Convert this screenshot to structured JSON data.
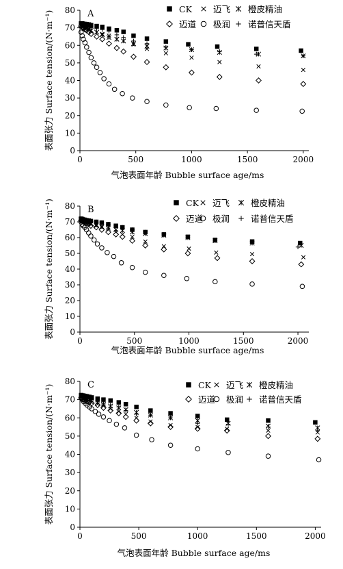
{
  "chart_data": [
    {
      "type": "scatter",
      "panel_label": "A",
      "xlabel": "气泡表面年龄 Bubble surface age/ms",
      "ylabel": "表面张力 Surface tension/(N·m⁻¹)",
      "xlim": [
        0,
        2050
      ],
      "ylim": [
        0,
        80
      ],
      "xticks": [
        "0",
        "500",
        "1000",
        "1500",
        "2000"
      ],
      "yticks": [
        "0",
        "10",
        "20",
        "30",
        "40",
        "50",
        "60",
        "70",
        "80"
      ],
      "legend_position": "top-right",
      "grid": false,
      "series": [
        {
          "name": "CK",
          "marker": "filled-square",
          "x": [
            10,
            20,
            30,
            45,
            60,
            80,
            100,
            150,
            200,
            260,
            330,
            390,
            480,
            600,
            770,
            970,
            1230,
            1580,
            1980
          ],
          "y": [
            72.5,
            72.5,
            72.3,
            72.2,
            72.1,
            71.9,
            71.5,
            71.0,
            70.5,
            69.5,
            68.6,
            67.7,
            65.5,
            63.8,
            62.2,
            60.6,
            59.3,
            58.0,
            57.0
          ]
        },
        {
          "name": "迈飞",
          "marker": "x",
          "x": [
            10,
            20,
            30,
            45,
            60,
            80,
            100,
            150,
            200,
            260,
            330,
            390,
            480,
            600,
            770,
            1000,
            1250,
            1600,
            2000
          ],
          "y": [
            71.5,
            71.0,
            70.5,
            70.0,
            69.5,
            69.0,
            68.5,
            67.5,
            66.5,
            65.5,
            63.5,
            62.5,
            60.5,
            58.0,
            55.5,
            53.0,
            50.5,
            48.0,
            46.0
          ]
        },
        {
          "name": "橙皮精油",
          "marker": "asterisk",
          "x": [
            10,
            20,
            30,
            45,
            60,
            80,
            100,
            150,
            200,
            260,
            330,
            390,
            480,
            600,
            770,
            1000,
            1250,
            1600,
            2000
          ],
          "y": [
            71.5,
            71.3,
            71.0,
            70.5,
            70.0,
            69.5,
            68.5,
            67.5,
            66.0,
            64.5,
            63.5,
            62.5,
            61.0,
            59.5,
            58.5,
            57.5,
            56.0,
            55.0,
            54.0
          ]
        },
        {
          "name": "迈道",
          "marker": "open-diamond",
          "x": [
            10,
            20,
            30,
            45,
            60,
            80,
            100,
            150,
            200,
            260,
            330,
            390,
            480,
            600,
            770,
            1000,
            1250,
            1600,
            2000
          ],
          "y": [
            71.0,
            70.5,
            70.0,
            69.0,
            68.5,
            67.5,
            66.5,
            65.0,
            63.5,
            61.0,
            58.5,
            56.5,
            53.5,
            50.5,
            47.5,
            44.5,
            42.0,
            40.0,
            38.0
          ]
        },
        {
          "name": "极润",
          "marker": "open-circle",
          "x": [
            10,
            20,
            30,
            45,
            60,
            80,
            100,
            125,
            150,
            180,
            215,
            260,
            310,
            380,
            470,
            600,
            770,
            980,
            1220,
            1580,
            1990
          ],
          "y": [
            67.5,
            65.5,
            63.5,
            61.5,
            59.0,
            56.0,
            53.0,
            50.0,
            47.5,
            44.5,
            41.0,
            38.0,
            35.0,
            32.5,
            30.0,
            28.0,
            26.0,
            24.5,
            24.0,
            23.0,
            22.5
          ]
        },
        {
          "name": "诺普信天盾",
          "marker": "plus",
          "x": [
            10,
            20,
            30,
            45,
            60,
            80,
            100,
            150,
            200,
            260,
            330,
            390,
            480,
            600,
            770,
            1000,
            1250,
            1580,
            2000
          ],
          "y": [
            72.0,
            71.8,
            71.5,
            71.3,
            71.0,
            70.5,
            70.0,
            69.5,
            69.0,
            68.0,
            66.0,
            64.5,
            62.5,
            61.0,
            59.0,
            57.5,
            56.5,
            55.0,
            54.0
          ]
        }
      ]
    },
    {
      "type": "scatter",
      "panel_label": "B",
      "xlabel": "气泡表面年龄 Bubble surface age/ms",
      "ylabel": "表面张力 Surface tension/(N·m⁻¹)",
      "xlim": [
        0,
        2100
      ],
      "ylim": [
        0,
        80
      ],
      "xticks": [
        "0",
        "500",
        "1000",
        "1500",
        "2000"
      ],
      "yticks": [
        "0",
        "10",
        "20",
        "30",
        "40",
        "50",
        "60",
        "70",
        "80"
      ],
      "legend_position": "top-right",
      "grid": false,
      "series": [
        {
          "name": "CK",
          "marker": "filled-square",
          "x": [
            10,
            20,
            30,
            45,
            60,
            80,
            100,
            150,
            200,
            260,
            330,
            390,
            480,
            600,
            770,
            990,
            1240,
            1580,
            2020
          ],
          "y": [
            72.0,
            71.8,
            71.5,
            71.3,
            71.0,
            70.8,
            70.5,
            70.0,
            69.5,
            68.5,
            67.5,
            66.5,
            65.0,
            63.5,
            62.0,
            60.5,
            58.5,
            57.5,
            56.5
          ]
        },
        {
          "name": "迈飞",
          "marker": "x",
          "x": [
            10,
            20,
            30,
            45,
            60,
            80,
            100,
            150,
            200,
            260,
            330,
            390,
            480,
            600,
            770,
            1000,
            1250,
            1580,
            2050
          ],
          "y": [
            71.5,
            71.0,
            70.5,
            70.0,
            69.5,
            69.0,
            68.5,
            67.5,
            66.5,
            65.0,
            63.5,
            62.0,
            60.5,
            57.5,
            54.5,
            53.0,
            50.5,
            49.5,
            47.5
          ]
        },
        {
          "name": "橙皮精油",
          "marker": "asterisk",
          "x": [
            10,
            20,
            30,
            45,
            60,
            80,
            100,
            150,
            200,
            260,
            330,
            390,
            480,
            600,
            770,
            990,
            1240,
            1580,
            2030
          ],
          "y": [
            71.5,
            71.3,
            71.0,
            70.5,
            70.0,
            69.5,
            69.0,
            68.0,
            67.0,
            66.0,
            65.0,
            64.5,
            63.5,
            62.5,
            61.5,
            60.0,
            58.0,
            56.5,
            55.0
          ]
        },
        {
          "name": "迈道",
          "marker": "open-diamond",
          "x": [
            10,
            20,
            30,
            45,
            60,
            80,
            100,
            150,
            200,
            260,
            330,
            390,
            480,
            600,
            770,
            990,
            1260,
            1580,
            2030
          ],
          "y": [
            71.0,
            70.5,
            70.0,
            69.5,
            69.0,
            68.5,
            67.5,
            66.5,
            65.0,
            63.5,
            62.0,
            60.5,
            58.0,
            55.0,
            52.5,
            50.0,
            47.0,
            45.0,
            43.0
          ]
        },
        {
          "name": "极润",
          "marker": "open-circle",
          "x": [
            10,
            20,
            30,
            45,
            60,
            80,
            100,
            130,
            160,
            200,
            250,
            310,
            380,
            480,
            600,
            770,
            980,
            1240,
            1580,
            2040
          ],
          "y": [
            70.0,
            68.5,
            67.5,
            66.5,
            65.0,
            63.0,
            61.0,
            58.5,
            56.0,
            53.5,
            50.5,
            48.0,
            44.0,
            41.0,
            38.0,
            36.0,
            34.0,
            32.0,
            30.5,
            29.0
          ]
        },
        {
          "name": "诺普信天盾",
          "marker": "plus",
          "x": [
            10,
            20,
            30,
            45,
            60,
            80,
            100,
            150,
            200,
            260,
            330,
            390,
            480,
            600,
            770,
            990,
            1240,
            1580,
            2000
          ],
          "y": [
            72.0,
            71.8,
            71.5,
            71.3,
            71.0,
            70.8,
            70.5,
            70.0,
            69.5,
            68.5,
            67.5,
            66.5,
            65.0,
            63.5,
            62.0,
            60.0,
            58.0,
            56.5,
            54.0
          ]
        }
      ]
    },
    {
      "type": "scatter",
      "panel_label": "C",
      "xlabel": "气泡表面年龄 Bubble surface age/ms",
      "ylabel": "表面张力 Surface tension/(N·m⁻¹)",
      "xlim": [
        0,
        2050
      ],
      "ylim": [
        0,
        80
      ],
      "xticks": [
        "0",
        "500",
        "1000",
        "1500",
        "2000"
      ],
      "yticks": [
        "0",
        "10",
        "20",
        "30",
        "40",
        "50",
        "60",
        "70",
        "80"
      ],
      "legend_position": "top-right",
      "grid": false,
      "series": [
        {
          "name": "CK",
          "marker": "filled-square",
          "x": [
            10,
            20,
            30,
            45,
            60,
            80,
            100,
            150,
            200,
            260,
            330,
            390,
            480,
            600,
            770,
            1000,
            1250,
            1600,
            2000
          ],
          "y": [
            72.5,
            72.3,
            72.2,
            72.0,
            71.8,
            71.5,
            71.2,
            70.5,
            70.0,
            69.5,
            68.5,
            67.5,
            66.0,
            64.0,
            62.5,
            61.0,
            59.0,
            58.5,
            57.5
          ]
        },
        {
          "name": "迈飞",
          "marker": "x",
          "x": [
            10,
            20,
            30,
            45,
            60,
            80,
            100,
            150,
            200,
            260,
            330,
            390,
            480,
            600,
            770,
            1000,
            1250,
            1600,
            2020
          ],
          "y": [
            71.5,
            71.0,
            70.5,
            70.0,
            69.5,
            69.0,
            68.5,
            67.5,
            66.5,
            65.0,
            63.5,
            62.0,
            60.0,
            58.0,
            56.0,
            55.0,
            54.0,
            53.0,
            52.0
          ]
        },
        {
          "name": "橙皮精油",
          "marker": "asterisk",
          "x": [
            10,
            20,
            30,
            45,
            60,
            80,
            100,
            150,
            200,
            260,
            330,
            390,
            480,
            600,
            770,
            1000,
            1260,
            1600,
            2020
          ],
          "y": [
            72.0,
            71.8,
            71.5,
            71.0,
            70.5,
            70.0,
            69.5,
            68.5,
            67.5,
            66.5,
            65.5,
            64.5,
            63.0,
            61.5,
            60.0,
            58.5,
            57.0,
            55.5,
            54.5
          ]
        },
        {
          "name": "迈道",
          "marker": "open-diamond",
          "x": [
            10,
            20,
            30,
            45,
            60,
            80,
            100,
            150,
            200,
            260,
            330,
            390,
            480,
            600,
            770,
            1000,
            1250,
            1600,
            2020
          ],
          "y": [
            71.0,
            70.5,
            70.0,
            69.5,
            69.0,
            68.5,
            68.0,
            67.0,
            65.5,
            64.0,
            62.5,
            60.5,
            58.5,
            57.0,
            55.0,
            54.0,
            53.0,
            50.0,
            48.5
          ]
        },
        {
          "name": "极润",
          "marker": "open-circle",
          "x": [
            10,
            20,
            30,
            45,
            60,
            80,
            100,
            130,
            160,
            200,
            250,
            310,
            380,
            480,
            610,
            770,
            1000,
            1260,
            1600,
            2030
          ],
          "y": [
            71.0,
            70.0,
            69.0,
            68.0,
            67.0,
            66.0,
            65.0,
            63.5,
            62.0,
            60.5,
            58.5,
            56.5,
            54.5,
            50.5,
            48.0,
            45.0,
            43.0,
            41.0,
            39.0,
            37.0
          ]
        },
        {
          "name": "诺普信天盾",
          "marker": "plus",
          "x": [
            10,
            20,
            30,
            45,
            60,
            80,
            100,
            150,
            200,
            260,
            330,
            390,
            480,
            600,
            770,
            1000,
            1260,
            1600,
            2020
          ],
          "y": [
            72.0,
            71.8,
            71.5,
            71.2,
            70.8,
            70.5,
            70.0,
            69.0,
            68.0,
            67.0,
            66.0,
            64.0,
            62.0,
            61.5,
            60.0,
            57.0,
            56.5,
            55.0,
            53.0
          ]
        }
      ]
    }
  ]
}
